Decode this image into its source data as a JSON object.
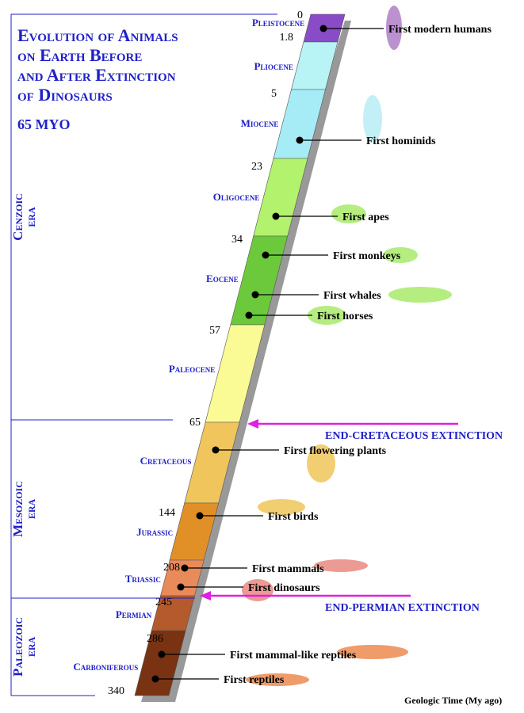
{
  "title": [
    "Evolution of Animals",
    "on Earth Before",
    "and After Extinction",
    "of Dinosaurs"
  ],
  "subtitle": "65 MYO",
  "eras": [
    {
      "name": "Cenzoic",
      "word": "era"
    },
    {
      "name": "Mesozoic",
      "word": "era"
    },
    {
      "name": "Paleozoic",
      "word": "era"
    }
  ],
  "periods": [
    {
      "name": "Pleistocene",
      "start": "0"
    },
    {
      "name": "Pliocene",
      "start": "1.8"
    },
    {
      "name": "Miocene",
      "start": "5"
    },
    {
      "name": "Oligocene",
      "start": "23"
    },
    {
      "name": "Eocene",
      "start": "34"
    },
    {
      "name": "Paleocene",
      "start": "57"
    },
    {
      "name": "Cretaceous",
      "start": "65"
    },
    {
      "name": "Jurassic",
      "start": "144"
    },
    {
      "name": "Triassic",
      "start": "208"
    },
    {
      "name": "Permian",
      "start": "245"
    },
    {
      "name": "Carboniferous",
      "start": "286"
    }
  ],
  "end_time": "340",
  "events": [
    "First modern humans",
    "First hominids",
    "First apes",
    "First monkeys",
    "First whales",
    "First horses",
    "First flowering plants",
    "First birds",
    "First mammals",
    "First dinosaurs",
    "First mammal-like reptiles",
    "First reptiles"
  ],
  "extinctions": [
    "END-CRETACEOUS EXTINCTION",
    "END-PERMIAN EXTINCTION"
  ],
  "footer": "Geologic Time (My ago)"
}
